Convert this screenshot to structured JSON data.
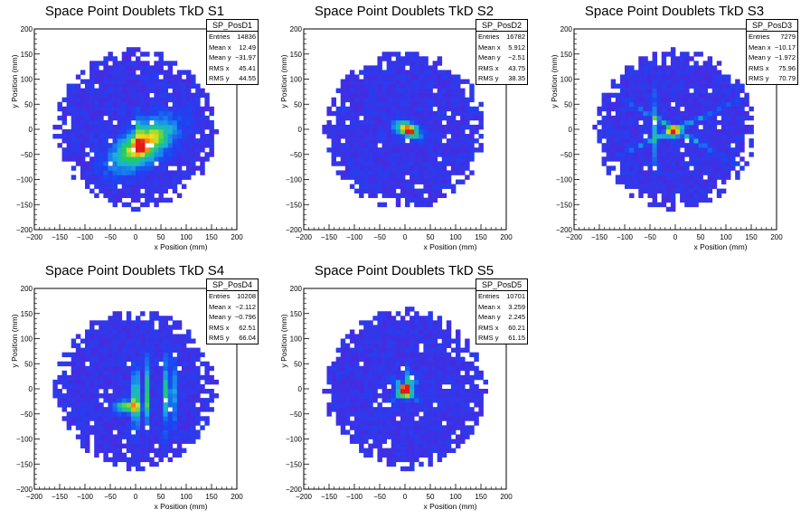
{
  "colors": {
    "background": "#ffffff",
    "axis": "#000000",
    "colormap": "ROOT kBird"
  },
  "chart_data": [
    {
      "type": "heatmap",
      "title": "Space Point Doublets TkD S1",
      "xlabel": "x Position (mm)",
      "ylabel": "y Position (mm)",
      "xlim": [
        -200,
        200
      ],
      "ylim": [
        -200,
        200
      ],
      "xticks": [
        "−200",
        "−150",
        "−100",
        "−50",
        "0",
        "50",
        "100",
        "150",
        "200"
      ],
      "yticks": [
        "−200",
        "−150",
        "−100",
        "−50",
        "0",
        "50",
        "100",
        "150",
        "200"
      ],
      "stats": {
        "name": "SP_PosD1",
        "rows": [
          [
            "Entries",
            "14836"
          ],
          [
            "Mean x",
            "12.49"
          ],
          [
            "Mean y",
            "−31.97"
          ],
          [
            "RMS x",
            "45.41"
          ],
          [
            "RMS y",
            "44.55"
          ]
        ]
      },
      "hotspots": [
        {
          "x": 15,
          "y": -30,
          "sx": 45,
          "sy": 22,
          "rot": 35,
          "amp": 0.75
        },
        {
          "x": 10,
          "y": -35,
          "sx": 8,
          "sy": 8,
          "rot": 0,
          "amp": 0.6
        },
        {
          "x": 8,
          "y": 5,
          "sx": 3,
          "sy": 25,
          "rot": 0,
          "amp": 0.35
        }
      ]
    },
    {
      "type": "heatmap",
      "title": "Space Point Doublets TkD S2",
      "xlabel": "x Position (mm)",
      "ylabel": "y Position (mm)",
      "xlim": [
        -200,
        200
      ],
      "ylim": [
        -200,
        200
      ],
      "xticks": [
        "−200",
        "−150",
        "−100",
        "−50",
        "0",
        "50",
        "100",
        "150",
        "200"
      ],
      "yticks": [
        "−200",
        "−150",
        "−100",
        "−50",
        "0",
        "50",
        "100",
        "150",
        "200"
      ],
      "stats": {
        "name": "SP_PosD2",
        "rows": [
          [
            "Entries",
            "16782"
          ],
          [
            "Mean x",
            "5.912"
          ],
          [
            "Mean y",
            "−2.51"
          ],
          [
            "RMS x",
            "43.75"
          ],
          [
            "RMS y",
            "38.35"
          ]
        ]
      },
      "hotspots": [
        {
          "x": 5,
          "y": 0,
          "sx": 18,
          "sy": 9,
          "rot": -25,
          "amp": 0.75
        },
        {
          "x": 8,
          "y": -2,
          "sx": 5,
          "sy": 5,
          "rot": 0,
          "amp": 0.5
        }
      ]
    },
    {
      "type": "heatmap",
      "title": "Space Point Doublets TkD S3",
      "xlabel": "x Position (mm)",
      "ylabel": "y Position (mm)",
      "xlim": [
        -200,
        200
      ],
      "ylim": [
        -200,
        200
      ],
      "xticks": [
        "−200",
        "−150",
        "−100",
        "−50",
        "0",
        "50",
        "100",
        "150",
        "200"
      ],
      "yticks": [
        "−200",
        "−150",
        "−100",
        "−50",
        "0",
        "50",
        "100",
        "150",
        "200"
      ],
      "stats": {
        "name": "SP_PosD3",
        "rows": [
          [
            "Entries",
            "7279"
          ],
          [
            "Mean x",
            "−10.17"
          ],
          [
            "Mean y",
            "−1.972"
          ],
          [
            "RMS x",
            "75.96"
          ],
          [
            "RMS y",
            "70.79"
          ]
        ]
      },
      "hotspots": [
        {
          "x": -5,
          "y": -5,
          "sx": 8,
          "sy": 8,
          "rot": 0,
          "amp": 0.75
        },
        {
          "x": 0,
          "y": 0,
          "sx": 70,
          "sy": 3,
          "rot": 25,
          "amp": 0.35
        },
        {
          "x": 0,
          "y": 0,
          "sx": 70,
          "sy": 3,
          "rot": -30,
          "amp": 0.35
        },
        {
          "x": -40,
          "y": 0,
          "sx": 3,
          "sy": 45,
          "rot": 0,
          "amp": 0.35
        }
      ]
    },
    {
      "type": "heatmap",
      "title": "Space Point Doublets TkD S4",
      "xlabel": "x Position (mm)",
      "ylabel": "y Position (mm)",
      "xlim": [
        -200,
        200
      ],
      "ylim": [
        -200,
        200
      ],
      "xticks": [
        "−200",
        "−150",
        "−100",
        "−50",
        "0",
        "50",
        "100",
        "150",
        "200"
      ],
      "yticks": [
        "−200",
        "−150",
        "−100",
        "−50",
        "0",
        "50",
        "100",
        "150",
        "200"
      ],
      "stats": {
        "name": "SP_PosD4",
        "rows": [
          [
            "Entries",
            "10208"
          ],
          [
            "Mean x",
            "−2.112"
          ],
          [
            "Mean y",
            "−0.796"
          ],
          [
            "RMS x",
            "62.51"
          ],
          [
            "RMS y",
            "66.04"
          ]
        ]
      },
      "hotspots": [
        {
          "x": -15,
          "y": -35,
          "sx": 18,
          "sy": 8,
          "rot": 0,
          "amp": 0.6
        },
        {
          "x": 0,
          "y": -20,
          "sx": 4,
          "sy": 40,
          "rot": 0,
          "amp": 0.7
        },
        {
          "x": 22,
          "y": -10,
          "sx": 3,
          "sy": 45,
          "rot": 0,
          "amp": 0.45
        },
        {
          "x": 62,
          "y": -10,
          "sx": 4,
          "sy": 45,
          "rot": 0,
          "amp": 0.5
        },
        {
          "x": 75,
          "y": -10,
          "sx": 3,
          "sy": 40,
          "rot": 0,
          "amp": 0.35
        }
      ]
    },
    {
      "type": "heatmap",
      "title": "Space Point Doublets TkD S5",
      "xlabel": "x Position (mm)",
      "ylabel": "y Position (mm)",
      "xlim": [
        -200,
        200
      ],
      "ylim": [
        -200,
        200
      ],
      "xticks": [
        "−200",
        "−150",
        "−100",
        "−50",
        "0",
        "50",
        "100",
        "150",
        "200"
      ],
      "yticks": [
        "−200",
        "−150",
        "−100",
        "−50",
        "0",
        "50",
        "100",
        "150",
        "200"
      ],
      "stats": {
        "name": "SP_PosD5",
        "rows": [
          [
            "Entries",
            "10701"
          ],
          [
            "Mean x",
            "3.259"
          ],
          [
            "Mean y",
            "2.245"
          ],
          [
            "RMS x",
            "60.21"
          ],
          [
            "RMS y",
            "61.15"
          ]
        ]
      },
      "hotspots": [
        {
          "x": 0,
          "y": -5,
          "sx": 8,
          "sy": 8,
          "rot": 0,
          "amp": 0.85
        },
        {
          "x": 0,
          "y": 0,
          "sx": 25,
          "sy": 4,
          "rot": 40,
          "amp": 0.35
        },
        {
          "x": 0,
          "y": 0,
          "sx": 25,
          "sy": 4,
          "rot": -40,
          "amp": 0.35
        },
        {
          "x": 5,
          "y": 20,
          "sx": 4,
          "sy": 18,
          "rot": 0,
          "amp": 0.35
        }
      ]
    }
  ]
}
